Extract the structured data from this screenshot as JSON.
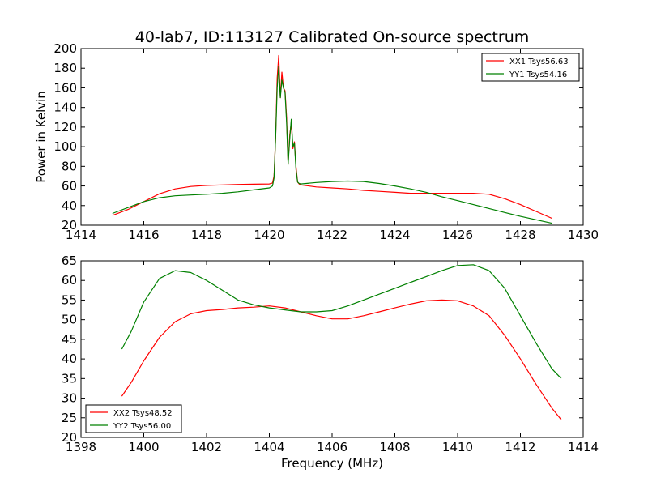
{
  "figure_title": "40-lab7, ID:113127 Calibrated On-source spectrum",
  "chart_data": [
    {
      "type": "line",
      "title": "40-lab7, ID:113127 Calibrated On-source spectrum",
      "xlabel": "",
      "ylabel": "Power in Kelvin",
      "xlim": [
        1414,
        1430
      ],
      "ylim": [
        20,
        200
      ],
      "xticks": [
        1414,
        1416,
        1418,
        1420,
        1422,
        1424,
        1426,
        1428,
        1430
      ],
      "yticks": [
        20,
        40,
        60,
        80,
        100,
        120,
        140,
        160,
        180,
        200
      ],
      "grid": false,
      "legend_position": "top-right",
      "series": [
        {
          "name": "XX1 Tsys56.63",
          "color": "#ff0000",
          "x": [
            1415.0,
            1415.5,
            1416.0,
            1416.5,
            1417.0,
            1417.5,
            1418.0,
            1418.5,
            1419.0,
            1419.5,
            1420.0,
            1420.1,
            1420.15,
            1420.2,
            1420.25,
            1420.3,
            1420.35,
            1420.4,
            1420.45,
            1420.5,
            1420.55,
            1420.6,
            1420.65,
            1420.7,
            1420.75,
            1420.8,
            1420.85,
            1420.9,
            1420.95,
            1421.0,
            1421.5,
            1422.0,
            1422.5,
            1423.0,
            1423.5,
            1424.0,
            1424.5,
            1425.0,
            1425.5,
            1426.0,
            1426.5,
            1427.0,
            1427.5,
            1428.0,
            1428.5,
            1429.0
          ],
          "y": [
            30,
            36,
            44,
            52,
            57,
            59.5,
            60.5,
            61,
            61.5,
            61.8,
            62,
            63,
            70,
            110,
            170,
            193,
            150,
            176,
            160,
            157,
            130,
            83,
            112,
            124,
            98,
            105,
            80,
            64,
            62,
            61,
            59,
            58,
            57,
            55.5,
            54.5,
            53.5,
            52.5,
            52.5,
            52.5,
            52.5,
            52.5,
            51.5,
            47,
            41,
            34,
            27
          ]
        },
        {
          "name": "YY1 Tsys54.16",
          "color": "#008000",
          "x": [
            1415.0,
            1415.5,
            1416.0,
            1416.5,
            1417.0,
            1417.5,
            1418.0,
            1418.5,
            1419.0,
            1419.5,
            1420.0,
            1420.1,
            1420.15,
            1420.2,
            1420.25,
            1420.3,
            1420.35,
            1420.4,
            1420.45,
            1420.5,
            1420.55,
            1420.6,
            1420.65,
            1420.7,
            1420.75,
            1420.8,
            1420.85,
            1420.9,
            1420.95,
            1421.0,
            1421.5,
            1422.0,
            1422.5,
            1423.0,
            1423.5,
            1424.0,
            1424.5,
            1425.0,
            1425.5,
            1426.0,
            1426.5,
            1427.0,
            1427.5,
            1428.0,
            1428.5,
            1429.0
          ],
          "y": [
            32,
            38,
            44,
            48,
            50,
            50.8,
            51.5,
            52.5,
            54,
            56,
            58,
            60,
            68,
            110,
            160,
            182,
            150,
            168,
            160,
            155,
            125,
            82,
            108,
            128,
            100,
            104,
            77,
            64,
            62.5,
            62,
            63.5,
            64.5,
            65,
            64.5,
            62.5,
            60,
            57,
            53.5,
            49,
            45,
            41,
            37,
            33,
            29,
            25.5,
            22
          ]
        }
      ]
    },
    {
      "type": "line",
      "title": "",
      "xlabel": "Frequency (MHz)",
      "ylabel": "",
      "xlim": [
        1398,
        1414
      ],
      "ylim": [
        20,
        65
      ],
      "xticks": [
        1398,
        1400,
        1402,
        1404,
        1406,
        1408,
        1410,
        1412,
        1414
      ],
      "yticks": [
        20,
        25,
        30,
        35,
        40,
        45,
        50,
        55,
        60,
        65
      ],
      "grid": false,
      "legend_position": "bottom-left",
      "series": [
        {
          "name": "XX2 Tsys48.52",
          "color": "#ff0000",
          "x": [
            1399.3,
            1399.6,
            1400.0,
            1400.5,
            1401.0,
            1401.5,
            1402.0,
            1402.5,
            1403.0,
            1403.5,
            1404.0,
            1404.5,
            1405.0,
            1405.5,
            1406.0,
            1406.5,
            1407.0,
            1407.5,
            1408.0,
            1408.5,
            1409.0,
            1409.5,
            1410.0,
            1410.5,
            1411.0,
            1411.5,
            1412.0,
            1412.5,
            1413.0,
            1413.3
          ],
          "y": [
            30.5,
            34,
            39.5,
            45.5,
            49.5,
            51.5,
            52.3,
            52.6,
            53,
            53.2,
            53.5,
            53,
            52,
            51,
            50.2,
            50.2,
            51,
            52,
            53,
            54,
            54.8,
            55,
            54.8,
            53.5,
            51,
            46,
            40,
            33.5,
            27.5,
            24.5
          ]
        },
        {
          "name": "YY2 Tsys56.00",
          "color": "#008000",
          "x": [
            1399.3,
            1399.6,
            1400.0,
            1400.5,
            1401.0,
            1401.5,
            1402.0,
            1402.5,
            1403.0,
            1403.5,
            1404.0,
            1404.5,
            1405.0,
            1405.5,
            1406.0,
            1406.5,
            1407.0,
            1407.5,
            1408.0,
            1408.5,
            1409.0,
            1409.5,
            1410.0,
            1410.5,
            1411.0,
            1411.5,
            1412.0,
            1412.5,
            1413.0,
            1413.3
          ],
          "y": [
            42.5,
            47,
            54.5,
            60.5,
            62.5,
            62,
            60,
            57.5,
            55,
            53.8,
            53,
            52.5,
            52,
            52,
            52.3,
            53.5,
            55,
            56.5,
            58,
            59.5,
            61,
            62.5,
            63.8,
            64,
            62.5,
            58,
            51,
            44,
            37.5,
            35
          ]
        }
      ]
    }
  ]
}
